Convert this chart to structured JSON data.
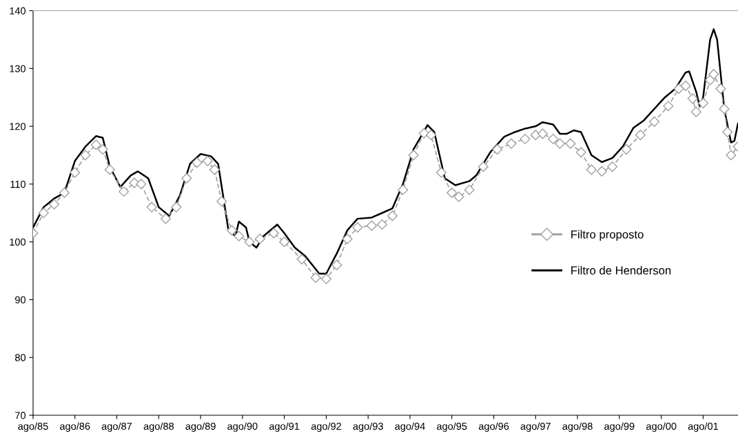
{
  "chart_data": {
    "type": "line",
    "xlim": [
      "1985-08",
      "2002-06"
    ],
    "xticks": [
      {
        "value": "1985-08",
        "label": "ago/85"
      },
      {
        "value": "1986-08",
        "label": "ago/86"
      },
      {
        "value": "1987-08",
        "label": "ago/87"
      },
      {
        "value": "1988-08",
        "label": "ago/88"
      },
      {
        "value": "1989-08",
        "label": "ago/89"
      },
      {
        "value": "1990-08",
        "label": "ago/90"
      },
      {
        "value": "1991-08",
        "label": "ago/91"
      },
      {
        "value": "1992-08",
        "label": "ago/92"
      },
      {
        "value": "1993-08",
        "label": "ago/93"
      },
      {
        "value": "1994-08",
        "label": "ago/94"
      },
      {
        "value": "1995-08",
        "label": "ago/95"
      },
      {
        "value": "1996-08",
        "label": "ago/96"
      },
      {
        "value": "1997-08",
        "label": "ago/97"
      },
      {
        "value": "1998-08",
        "label": "ago/98"
      },
      {
        "value": "1999-08",
        "label": "ago/99"
      },
      {
        "value": "2000-08",
        "label": "ago/00"
      },
      {
        "value": "2001-08",
        "label": "ago/01"
      }
    ],
    "ylim": [
      70,
      140
    ],
    "yticks": [
      70,
      80,
      90,
      100,
      110,
      120,
      130,
      140
    ],
    "grid": false,
    "legend": "center right",
    "series": [
      {
        "name": "Filtro proposto",
        "color": "#a0a0a0",
        "marker": "diamond",
        "line_style": "dashed",
        "x": [
          "1985-08",
          "1985-11",
          "1986-02",
          "1986-05",
          "1986-08",
          "1986-11",
          "1987-02",
          "1987-04",
          "1987-06",
          "1987-10",
          "1988-01",
          "1988-03",
          "1988-06",
          "1988-10",
          "1989-01",
          "1989-04",
          "1989-07",
          "1989-10",
          "1989-12",
          "1990-02",
          "1990-05",
          "1990-07",
          "1990-10",
          "1991-01",
          "1991-05",
          "1991-08",
          "1992-01",
          "1992-05",
          "1992-08",
          "1992-11",
          "1993-02",
          "1993-05",
          "1993-09",
          "1993-12",
          "1994-03",
          "1994-06",
          "1994-09",
          "1994-12",
          "1995-02",
          "1995-05",
          "1995-08",
          "1995-10",
          "1996-01",
          "1996-05",
          "1996-09",
          "1997-01",
          "1997-05",
          "1997-08",
          "1997-10",
          "1998-01",
          "1998-03",
          "1998-06",
          "1998-09",
          "1998-12",
          "1999-03",
          "1999-06",
          "1999-10",
          "2000-02",
          "2000-06",
          "2000-10",
          "2001-01",
          "2001-03",
          "2001-05",
          "2001-06",
          "2001-08",
          "2001-10",
          "2001-11",
          "2002-01",
          "2002-02",
          "2002-03",
          "2002-04",
          "2002-06"
        ],
        "values": [
          101.5,
          105,
          106.5,
          108.5,
          112,
          115,
          116.8,
          116,
          112.5,
          108.7,
          110.2,
          110,
          106,
          104,
          106,
          111,
          113.7,
          114,
          112.5,
          107,
          102,
          101,
          100,
          100.5,
          101.5,
          100,
          97,
          93.8,
          93.6,
          96,
          100.5,
          102.5,
          102.8,
          103,
          104.5,
          109,
          115,
          118.8,
          118.5,
          112,
          108.5,
          107.8,
          109,
          113,
          116,
          117,
          117.8,
          118.5,
          118.7,
          117.8,
          117,
          117,
          115.5,
          112.5,
          112.2,
          113,
          116,
          118.5,
          120.8,
          123.5,
          126.5,
          127,
          124.8,
          122.5,
          124,
          128,
          129,
          126.5,
          123,
          119,
          115,
          116.5
        ]
      },
      {
        "name": "Filtro de Henderson",
        "color": "#000000",
        "marker": "none",
        "line_style": "solid",
        "x": [
          "1985-08",
          "1985-11",
          "1986-02",
          "1986-05",
          "1986-08",
          "1986-11",
          "1987-02",
          "1987-04",
          "1987-06",
          "1987-09",
          "1987-12",
          "1988-02",
          "1988-05",
          "1988-08",
          "1988-11",
          "1989-02",
          "1989-05",
          "1989-08",
          "1989-11",
          "1990-01",
          "1990-04",
          "1990-06",
          "1990-07",
          "1990-09",
          "1990-10",
          "1990-12",
          "1991-02",
          "1991-06",
          "1991-08",
          "1991-11",
          "1992-02",
          "1992-06",
          "1992-08",
          "1992-11",
          "1993-02",
          "1993-05",
          "1993-09",
          "1993-12",
          "1994-03",
          "1994-06",
          "1994-09",
          "1995-01",
          "1995-03",
          "1995-06",
          "1995-09",
          "1996-01",
          "1996-03",
          "1996-07",
          "1996-11",
          "1997-02",
          "1997-05",
          "1997-08",
          "1997-10",
          "1998-01",
          "1998-03",
          "1998-05",
          "1998-07",
          "1998-09",
          "1998-12",
          "1999-03",
          "1999-06",
          "1999-09",
          "1999-12",
          "2000-03",
          "2000-06",
          "2000-09",
          "2000-12",
          "2001-03",
          "2001-04",
          "2001-06",
          "2001-07",
          "2001-08",
          "2001-10",
          "2001-11",
          "2001-12",
          "2002-02",
          "2002-04",
          "2002-05",
          "2002-06"
        ],
        "values": [
          102.5,
          106,
          107.5,
          108.5,
          114,
          116.5,
          118.3,
          118,
          113,
          109.5,
          111.5,
          112.2,
          111,
          106,
          104.5,
          108,
          113.5,
          115.2,
          114.8,
          113.5,
          102,
          101,
          103.5,
          102.5,
          100,
          99,
          101,
          103,
          101.5,
          99,
          97.5,
          94.5,
          94.5,
          98,
          102,
          104,
          104.2,
          105,
          105.8,
          110,
          116,
          120.2,
          119,
          111,
          109.8,
          110.5,
          111.5,
          115.5,
          118.2,
          119,
          119.6,
          120,
          120.7,
          120.3,
          118.7,
          118.7,
          119.3,
          119,
          115,
          113.8,
          114.5,
          116.5,
          119.7,
          121,
          123,
          125,
          126.5,
          129.3,
          129.5,
          126,
          123.5,
          125,
          135,
          136.8,
          135,
          123,
          117.2,
          117.5,
          120.5
        ]
      }
    ]
  }
}
